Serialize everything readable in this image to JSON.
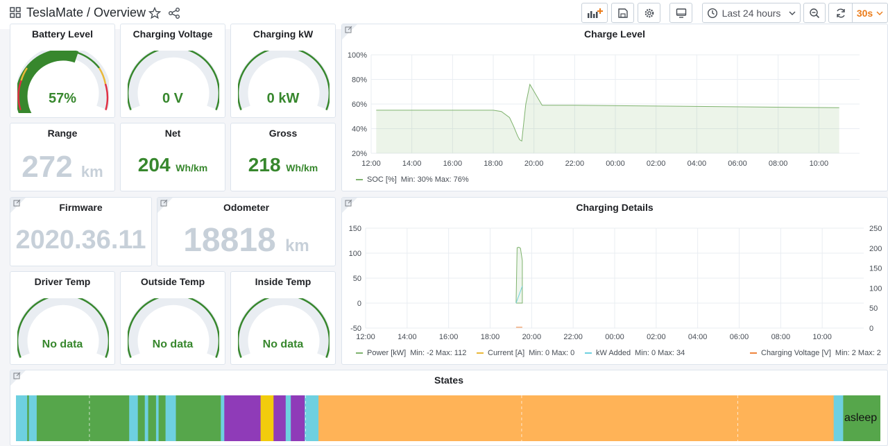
{
  "header": {
    "title": "TeslaMate / Overview",
    "time_range": "Last 24 hours",
    "refresh": "30s"
  },
  "icons": {
    "apps": "apps-grid-icon",
    "star": "star-icon",
    "share": "share-icon",
    "add_panel": "add-panel-icon",
    "save": "save-icon",
    "settings": "gear-icon",
    "tv": "tv-icon",
    "clock": "clock-icon",
    "chevron": "chevron-down-icon",
    "zoom_out": "zoom-out-icon",
    "refresh": "refresh-icon",
    "link": "link-icon"
  },
  "colors": {
    "accent_green": "#37872d",
    "orange": "#eb7b18",
    "grey_value": "#c7d0d9",
    "gauge_track": "#e9edf2"
  },
  "panels": {
    "battery": {
      "title": "Battery Level",
      "value": "57%",
      "percent": 57
    },
    "charging_voltage": {
      "title": "Charging Voltage",
      "value": "0 V"
    },
    "charging_kw": {
      "title": "Charging kW",
      "value": "0 kW"
    },
    "range": {
      "title": "Range",
      "value": "272",
      "unit": "km"
    },
    "net": {
      "title": "Net",
      "value": "204",
      "unit": "Wh/km"
    },
    "gross": {
      "title": "Gross",
      "value": "218",
      "unit": "Wh/km"
    },
    "firmware": {
      "title": "Firmware",
      "value": "2020.36.11"
    },
    "odometer": {
      "title": "Odometer",
      "value": "18818",
      "unit": "km"
    },
    "driver_temp": {
      "title": "Driver Temp",
      "value": "No data"
    },
    "outside_temp": {
      "title": "Outside Temp",
      "value": "No data"
    },
    "inside_temp": {
      "title": "Inside Temp",
      "value": "No data"
    },
    "states": {
      "title": "States",
      "last_state": "asleep"
    }
  },
  "chart_data": [
    {
      "type": "area",
      "title": "Charge Level",
      "x_ticks": [
        "12:00",
        "14:00",
        "16:00",
        "18:00",
        "20:00",
        "22:00",
        "00:00",
        "02:00",
        "04:00",
        "06:00",
        "08:00",
        "10:00"
      ],
      "y_ticks": [
        "20%",
        "40%",
        "60%",
        "80%",
        "100%"
      ],
      "ylim": [
        20,
        100
      ],
      "series": [
        {
          "name": "SOC [%]",
          "stats": "Min: 30%  Max: 76%",
          "color": "#7eb26d",
          "x_hours": [
            12.25,
            18.0,
            18.4,
            18.8,
            19.0,
            19.2,
            19.3,
            19.4,
            19.6,
            19.8,
            20.4,
            22.0,
            35.0
          ],
          "values": [
            55,
            55,
            54,
            49,
            42,
            34,
            31,
            30,
            60,
            76,
            59,
            59,
            57
          ]
        }
      ]
    },
    {
      "type": "line",
      "title": "Charging Details",
      "x_ticks": [
        "12:00",
        "14:00",
        "16:00",
        "18:00",
        "20:00",
        "22:00",
        "00:00",
        "02:00",
        "04:00",
        "06:00",
        "08:00",
        "10:00"
      ],
      "y_ticks_left": [
        "-50",
        "0",
        "50",
        "100",
        "150"
      ],
      "y_ticks_right": [
        "0",
        "50",
        "100",
        "150",
        "200",
        "250"
      ],
      "ylim_left": [
        -50,
        150
      ],
      "ylim_right": [
        0,
        250
      ],
      "series": [
        {
          "name": "Power [kW]",
          "stats": "Min: -2  Max: 112",
          "color": "#7eb26d",
          "axis": "left",
          "x_hours": [
            19.25,
            19.3,
            19.38,
            19.46,
            19.55,
            19.55,
            19.25
          ],
          "values": [
            0,
            111,
            112,
            110,
            85,
            0,
            0
          ]
        },
        {
          "name": "Current [A]",
          "stats": "Min: 0  Max: 0",
          "color": "#eab839",
          "axis": "left",
          "x_hours": [],
          "values": []
        },
        {
          "name": "kW Added",
          "stats": "Min: 0  Max: 34",
          "color": "#6ed0e0",
          "axis": "left",
          "x_hours": [
            19.25,
            19.55
          ],
          "values": [
            0,
            34
          ]
        },
        {
          "name": "Charging Voltage [V]",
          "stats": "Min: 2  Max: 2",
          "color": "#ef843c",
          "axis": "right",
          "x_hours": [
            19.25,
            19.55
          ],
          "values": [
            2,
            2
          ]
        }
      ]
    }
  ],
  "states_timeline": [
    {
      "start": 0.0,
      "end": 0.013,
      "color": "#6ed0e0"
    },
    {
      "start": 0.013,
      "end": 0.015,
      "color": "#56a64b"
    },
    {
      "start": 0.015,
      "end": 0.024,
      "color": "#6ed0e0"
    },
    {
      "start": 0.024,
      "end": 0.131,
      "color": "#56a64b"
    },
    {
      "start": 0.131,
      "end": 0.141,
      "color": "#6ed0e0"
    },
    {
      "start": 0.141,
      "end": 0.149,
      "color": "#56a64b"
    },
    {
      "start": 0.149,
      "end": 0.153,
      "color": "#6ed0e0"
    },
    {
      "start": 0.153,
      "end": 0.162,
      "color": "#56a64b"
    },
    {
      "start": 0.162,
      "end": 0.165,
      "color": "#6ed0e0"
    },
    {
      "start": 0.165,
      "end": 0.173,
      "color": "#56a64b"
    },
    {
      "start": 0.173,
      "end": 0.185,
      "color": "#6ed0e0"
    },
    {
      "start": 0.185,
      "end": 0.237,
      "color": "#56a64b"
    },
    {
      "start": 0.237,
      "end": 0.241,
      "color": "#6ed0e0"
    },
    {
      "start": 0.241,
      "end": 0.283,
      "color": "#8f3bb8"
    },
    {
      "start": 0.283,
      "end": 0.298,
      "color": "#f2cc0c"
    },
    {
      "start": 0.298,
      "end": 0.312,
      "color": "#8f3bb8"
    },
    {
      "start": 0.312,
      "end": 0.318,
      "color": "#6ed0e0"
    },
    {
      "start": 0.318,
      "end": 0.334,
      "color": "#8f3bb8"
    },
    {
      "start": 0.334,
      "end": 0.35,
      "color": "#6ed0e0"
    },
    {
      "start": 0.35,
      "end": 0.946,
      "color": "#ffb357"
    },
    {
      "start": 0.946,
      "end": 0.957,
      "color": "#6ed0e0"
    },
    {
      "start": 0.957,
      "end": 1.0,
      "color": "#56a64b"
    }
  ]
}
